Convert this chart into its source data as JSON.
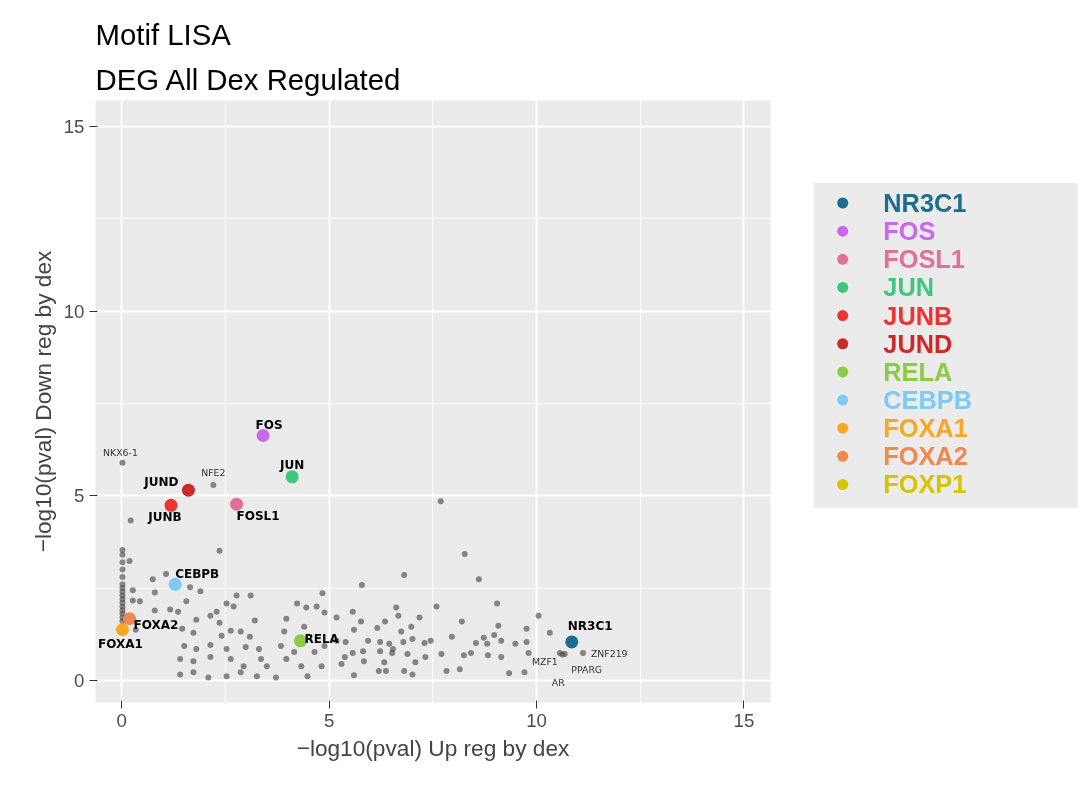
{
  "chart_data": {
    "type": "scatter",
    "title": "Motif LISA",
    "subtitle": "DEG All Dex Regulated",
    "xlabel": "−log10(pval) Up reg by dex",
    "ylabel": "−log10(pval) Down reg by dex",
    "xlim": [
      -0.63,
      15.64
    ],
    "ylim": [
      -0.6,
      15.7
    ],
    "xticks": [
      0,
      5,
      10,
      15
    ],
    "yticks": [
      0,
      5,
      10,
      15
    ],
    "grid": true,
    "legend": "right",
    "marker": "circle",
    "annotations": [
      {
        "text": "NKX6-1",
        "x": 0.02,
        "y": 5.89
      },
      {
        "text": "NFE2",
        "x": 2.21,
        "y": 5.29
      },
      {
        "text": "MZF1",
        "x": 10.56,
        "y": 0.74
      },
      {
        "text": "AR",
        "x": 10.62,
        "y": 0.7
      },
      {
        "text": "PPARG",
        "x": 10.68,
        "y": 0.71
      },
      {
        "text": "ZNF219",
        "x": 11.12,
        "y": 0.74
      }
    ],
    "series": [
      {
        "color": "#4d4d4d",
        "x": [
          0.02,
          2.21,
          10.56,
          10.62,
          10.68,
          11.12,
          7.69,
          8.27,
          8.61,
          6.81,
          5.79,
          7.59,
          9.05,
          10.05,
          10.32,
          6.62,
          6.67,
          7.18,
          5.57,
          5.18,
          5.77,
          8.2,
          6.35,
          6.98,
          9.08,
          9.76,
          6.16,
          5.6,
          6.74,
          7.96,
          8.73,
          8.98,
          9.15,
          8.54,
          8.81,
          9.49,
          9.76,
          7.45,
          7.3,
          7.01,
          6.79,
          6.45,
          6.23,
          5.94,
          5.4,
          5.18,
          7.71,
          8.25,
          8.42,
          8.83,
          9.15,
          9.81,
          7.32,
          6.89,
          6.52,
          6.23,
          5.82,
          5.57,
          5.38,
          7.08,
          6.33,
          5.84,
          5.3,
          7.83,
          8.15,
          9.34,
          9.71,
          6.81,
          6.37,
          6.2,
          7.01,
          5.6,
          6.54,
          0.22,
          2.36,
          0.02,
          0.02,
          0.02,
          0.02,
          0.02,
          0.02,
          0.02,
          0.02,
          0.02,
          0.02,
          0.02,
          0.02,
          0.02,
          0.02,
          0.02,
          0.02,
          0.19,
          0.75,
          1.07,
          0.27,
          1.65,
          1.9,
          0.8,
          2.77,
          3.11,
          0.27,
          0.44,
          1.17,
          0.8,
          1.36,
          1.56,
          2.53,
          2.7,
          2.29,
          1.8,
          2.14,
          3.21,
          2.36,
          0.34,
          1.46,
          2.63,
          2.87,
          1.73,
          3.09,
          2.41,
          1.51,
          1.8,
          2.14,
          2.53,
          2.99,
          3.31,
          1.41,
          1.73,
          2.14,
          2.63,
          2.94,
          3.36,
          1.41,
          1.73,
          2.09,
          2.53,
          2.87,
          3.26,
          3.72,
          3.97,
          4.23,
          4.45,
          4.7,
          4.84,
          3.97,
          3.92,
          4.4,
          4.89,
          3.84,
          4.16,
          4.65,
          4.89,
          4.33,
          4.82,
          4.48,
          3.5
        ],
        "values": [
          5.89,
          5.29,
          0.74,
          0.7,
          0.71,
          0.74,
          4.85,
          3.42,
          2.74,
          2.85,
          2.58,
          2.0,
          2.08,
          1.75,
          1.29,
          1.97,
          1.75,
          1.7,
          1.86,
          1.7,
          1.59,
          1.59,
          1.59,
          1.45,
          1.48,
          1.4,
          1.42,
          1.37,
          1.32,
          1.18,
          1.15,
          1.23,
          1.07,
          1.01,
          0.99,
          0.99,
          1.04,
          1.07,
          1.01,
          1.12,
          1.04,
          0.99,
          1.04,
          1.07,
          1.04,
          1.07,
          0.71,
          0.68,
          0.74,
          0.68,
          0.63,
          0.74,
          0.63,
          0.71,
          0.74,
          0.79,
          0.79,
          0.74,
          0.63,
          0.49,
          0.49,
          0.52,
          0.44,
          0.25,
          0.3,
          0.19,
          0.22,
          0.25,
          0.25,
          0.25,
          0.16,
          0.14,
          0.85,
          4.33,
          3.51,
          3.53,
          3.4,
          3.2,
          3.0,
          2.8,
          2.6,
          2.5,
          2.4,
          2.3,
          2.2,
          2.1,
          2.0,
          1.9,
          1.8,
          1.7,
          1.6,
          3.23,
          2.74,
          2.88,
          2.44,
          2.52,
          2.41,
          2.38,
          2.3,
          2.3,
          2.16,
          2.14,
          1.92,
          1.89,
          1.86,
          2.14,
          2.08,
          2.0,
          1.86,
          1.64,
          1.75,
          1.62,
          1.56,
          1.37,
          1.4,
          1.34,
          1.32,
          1.29,
          1.18,
          1.21,
          0.93,
          0.85,
          0.96,
          0.85,
          0.9,
          0.85,
          0.58,
          0.52,
          0.63,
          0.58,
          0.38,
          0.58,
          0.16,
          0.22,
          0.08,
          0.11,
          0.22,
          0.11,
          0.08,
          0.58,
          2.08,
          1.97,
          2.0,
          2.36,
          1.67,
          1.32,
          1.45,
          1.84,
          0.93,
          0.77,
          0.77,
          0.93,
          0.38,
          0.38,
          0.11,
          0.38
        ]
      },
      {
        "name": "NR3C1",
        "color": "#1a6e8e",
        "x": [
          10.85
        ],
        "values": [
          1.04
        ]
      },
      {
        "name": "FOS",
        "color": "#cc66ee",
        "x": [
          3.41
        ],
        "values": [
          6.63
        ]
      },
      {
        "name": "FOSL1",
        "color": "#e0709a",
        "x": [
          2.77
        ],
        "values": [
          4.77
        ]
      },
      {
        "name": "JUN",
        "color": "#3cc87a",
        "x": [
          4.11
        ],
        "values": [
          5.51
        ]
      },
      {
        "name": "JUNB",
        "color": "#ee3333",
        "x": [
          1.19
        ],
        "values": [
          4.74
        ]
      },
      {
        "name": "JUND",
        "color": "#cc2a2a",
        "x": [
          1.61
        ],
        "values": [
          5.15
        ]
      },
      {
        "name": "RELA",
        "color": "#8ccc44",
        "x": [
          4.31
        ],
        "values": [
          1.07
        ]
      },
      {
        "name": "CEBPB",
        "color": "#7ccaf5",
        "x": [
          1.29
        ],
        "values": [
          2.6
        ]
      },
      {
        "name": "FOXA1",
        "color": "#f8a820",
        "x": [
          0.02
        ],
        "values": [
          1.37
        ]
      },
      {
        "name": "FOXA2",
        "color": "#f08850",
        "x": [
          0.19
        ],
        "values": [
          1.67
        ]
      },
      {
        "name": "FOXP1",
        "color": "#d8c400",
        "x": [
          null
        ],
        "values": [
          null
        ]
      }
    ]
  }
}
